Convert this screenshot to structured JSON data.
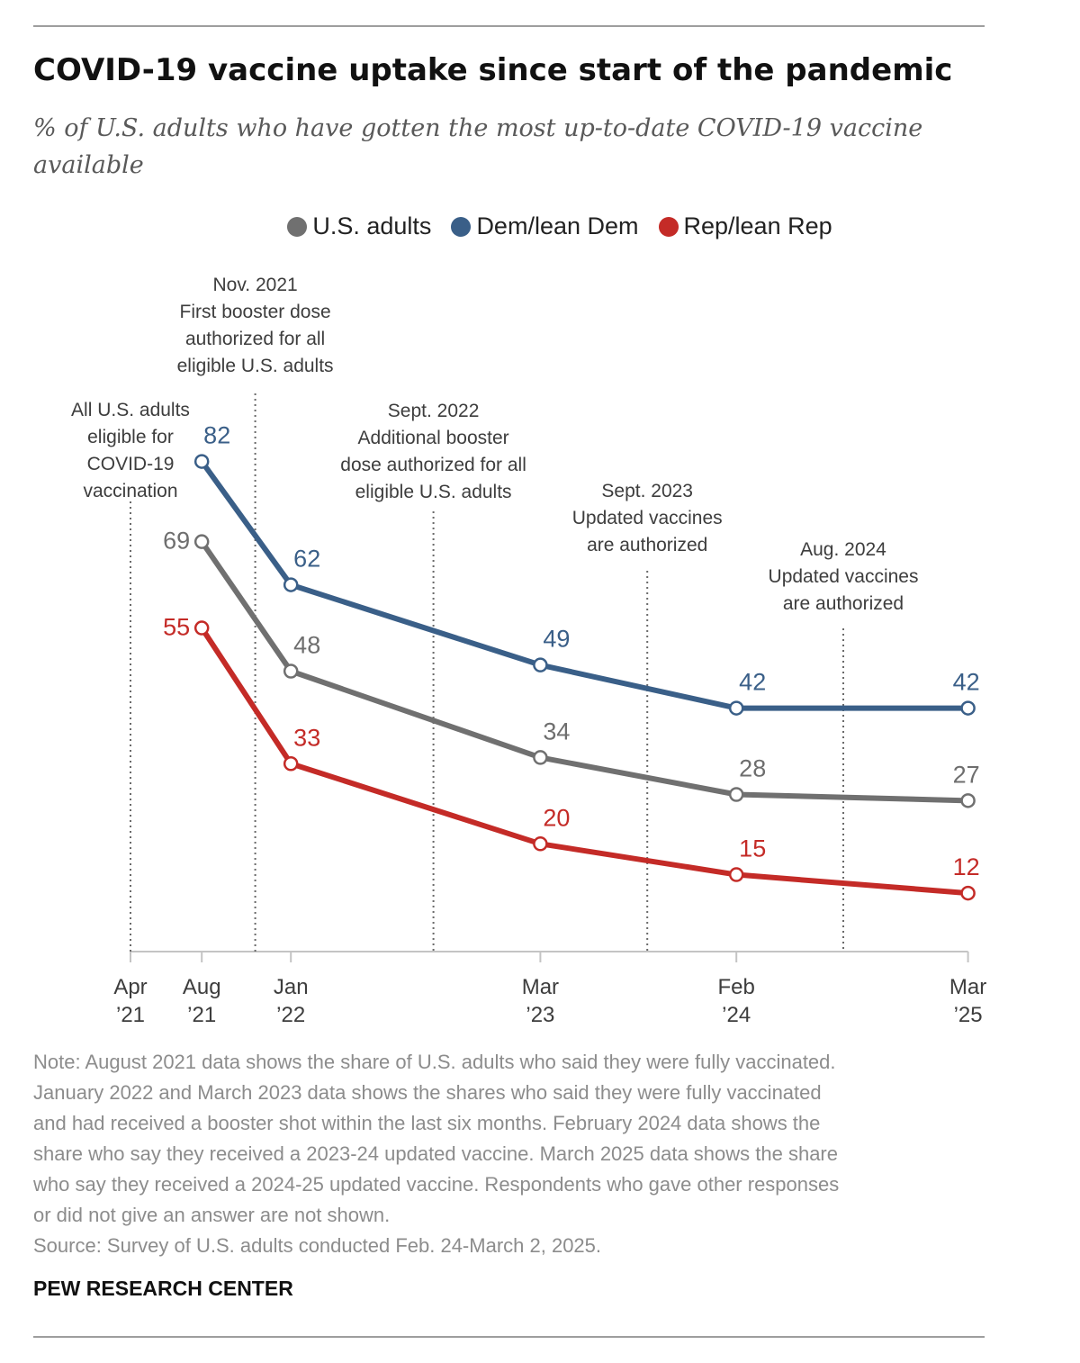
{
  "title": "COVID-19 vaccine uptake since start of the pandemic",
  "subtitle": "% of U.S. adults who have gotten the most up-to-date COVID-19 vaccine available",
  "note": "Note: August 2021 data shows the share of U.S. adults who said they were fully vaccinated.\nJanuary 2022 and March 2023 data shows the shares who said they were fully vaccinated\nand had received a booster shot within the last six months. February 2024 data shows the\nshare who say they received a 2023-24 updated vaccine. March 2025 data shows the share\nwho say they received a 2024-25 updated vaccine. Respondents who gave other responses\nor did not give an answer are not shown.",
  "source": "Source: Survey of U.S. adults conducted Feb. 24-March 2, 2025.",
  "brand": "PEW RESEARCH CENTER",
  "chart_data": {
    "type": "line",
    "x_axis_labels": [
      {
        "x": "2021-04",
        "lines": [
          "Apr",
          "’21"
        ]
      },
      {
        "x": "2021-08",
        "lines": [
          "Aug",
          "’21"
        ]
      },
      {
        "x": "2022-01",
        "lines": [
          "Jan",
          "’22"
        ]
      },
      {
        "x": "2023-03",
        "lines": [
          "Mar",
          "’23"
        ]
      },
      {
        "x": "2024-02",
        "lines": [
          "Feb",
          "’24"
        ]
      },
      {
        "x": "2025-03",
        "lines": [
          "Mar",
          "’25"
        ]
      }
    ],
    "x": [
      "2021-08",
      "2022-01",
      "2023-03",
      "2024-02",
      "2025-03"
    ],
    "series": [
      {
        "name": "U.S. adults",
        "color": "#707070",
        "label_color": "#6e6e6e",
        "values": [
          69,
          48,
          34,
          28,
          27
        ]
      },
      {
        "name": "Dem/lean Dem",
        "color": "#3a5f88",
        "label_color": "#3a5f88",
        "values": [
          82,
          62,
          49,
          42,
          42
        ]
      },
      {
        "name": "Rep/lean Rep",
        "color": "#c42b27",
        "label_color": "#c42b27",
        "values": [
          55,
          33,
          20,
          15,
          12
        ]
      }
    ],
    "events": [
      {
        "x": "2021-04",
        "lines": [
          "All U.S. adults",
          "eligible for",
          "COVID-19",
          "vaccination"
        ]
      },
      {
        "x": "2021-11",
        "lines": [
          "Nov. 2021",
          "First booster dose",
          "authorized for all",
          "eligible U.S. adults"
        ]
      },
      {
        "x": "2022-09",
        "lines": [
          "Sept. 2022",
          "Additional booster",
          "dose authorized for all",
          "eligible U.S. adults"
        ]
      },
      {
        "x": "2023-09",
        "lines": [
          "Sept. 2023",
          "Updated vaccines",
          "are authorized"
        ]
      },
      {
        "x": "2024-08",
        "lines": [
          "Aug. 2024",
          "Updated vaccines",
          "are authorized"
        ]
      }
    ],
    "grid": false,
    "legend_position": "top"
  }
}
